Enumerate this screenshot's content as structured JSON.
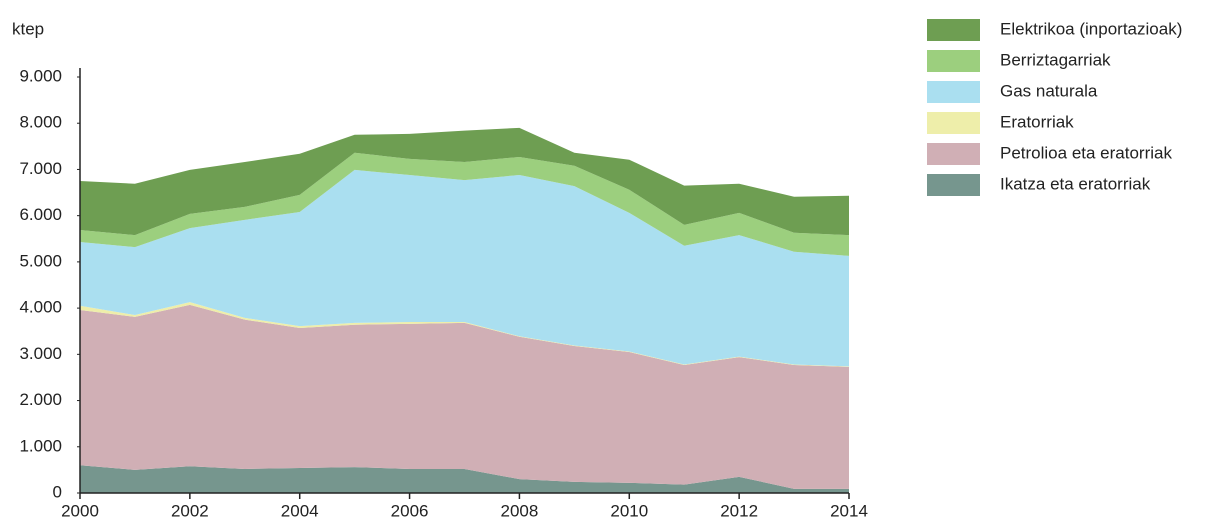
{
  "chart_data": {
    "type": "area",
    "stacked": true,
    "y_label": "ktep",
    "x": [
      2000,
      2001,
      2002,
      2003,
      2004,
      2005,
      2006,
      2007,
      2008,
      2009,
      2010,
      2011,
      2012,
      2013,
      2014
    ],
    "series": [
      {
        "name": "Ikatza eta eratorriak",
        "color": "#76968e",
        "values": [
          600,
          500,
          580,
          520,
          540,
          560,
          520,
          520,
          300,
          240,
          220,
          180,
          350,
          90,
          90
        ]
      },
      {
        "name": "Petrolioa eta eratorriak",
        "color": "#d0afb5",
        "values": [
          3360,
          3310,
          3490,
          3230,
          3030,
          3080,
          3140,
          3160,
          3080,
          2940,
          2830,
          2590,
          2590,
          2680,
          2640
        ]
      },
      {
        "name": "Eratorriak",
        "color": "#eeeeaa",
        "values": [
          90,
          40,
          60,
          40,
          40,
          40,
          40,
          20,
          10,
          10,
          10,
          10,
          10,
          10,
          10
        ]
      },
      {
        "name": "Gas naturala",
        "color": "#aadff0",
        "values": [
          1380,
          1470,
          1600,
          2120,
          2470,
          3310,
          3180,
          3070,
          3490,
          3450,
          3000,
          2570,
          2630,
          2440,
          2390
        ]
      },
      {
        "name": "Berriztagarriak",
        "color": "#9ccf7e",
        "values": [
          260,
          260,
          310,
          280,
          370,
          370,
          350,
          390,
          390,
          440,
          500,
          450,
          480,
          410,
          450
        ]
      },
      {
        "name": "Elektrikoa (inportazioak)",
        "color": "#6e9e52",
        "values": [
          1060,
          1110,
          950,
          970,
          890,
          390,
          540,
          680,
          630,
          280,
          650,
          850,
          630,
          780,
          850
        ]
      }
    ],
    "xlim": [
      2000,
      2014
    ],
    "xticks": [
      2000,
      2002,
      2004,
      2006,
      2008,
      2010,
      2012,
      2014
    ],
    "ylim": [
      0,
      9000
    ],
    "yticks": [
      0,
      {
        "value": 1000,
        "label": "1.000"
      },
      {
        "value": 2000,
        "label": "2.000"
      },
      {
        "value": 3000,
        "label": "3.000"
      },
      {
        "value": 4000,
        "label": "4.000"
      },
      {
        "value": 5000,
        "label": "5.000"
      },
      {
        "value": 6000,
        "label": "6.000"
      },
      {
        "value": 7000,
        "label": "7.000"
      },
      {
        "value": 8000,
        "label": "8.000"
      },
      {
        "value": 9000,
        "label": "9.000"
      }
    ],
    "legend": "right"
  }
}
